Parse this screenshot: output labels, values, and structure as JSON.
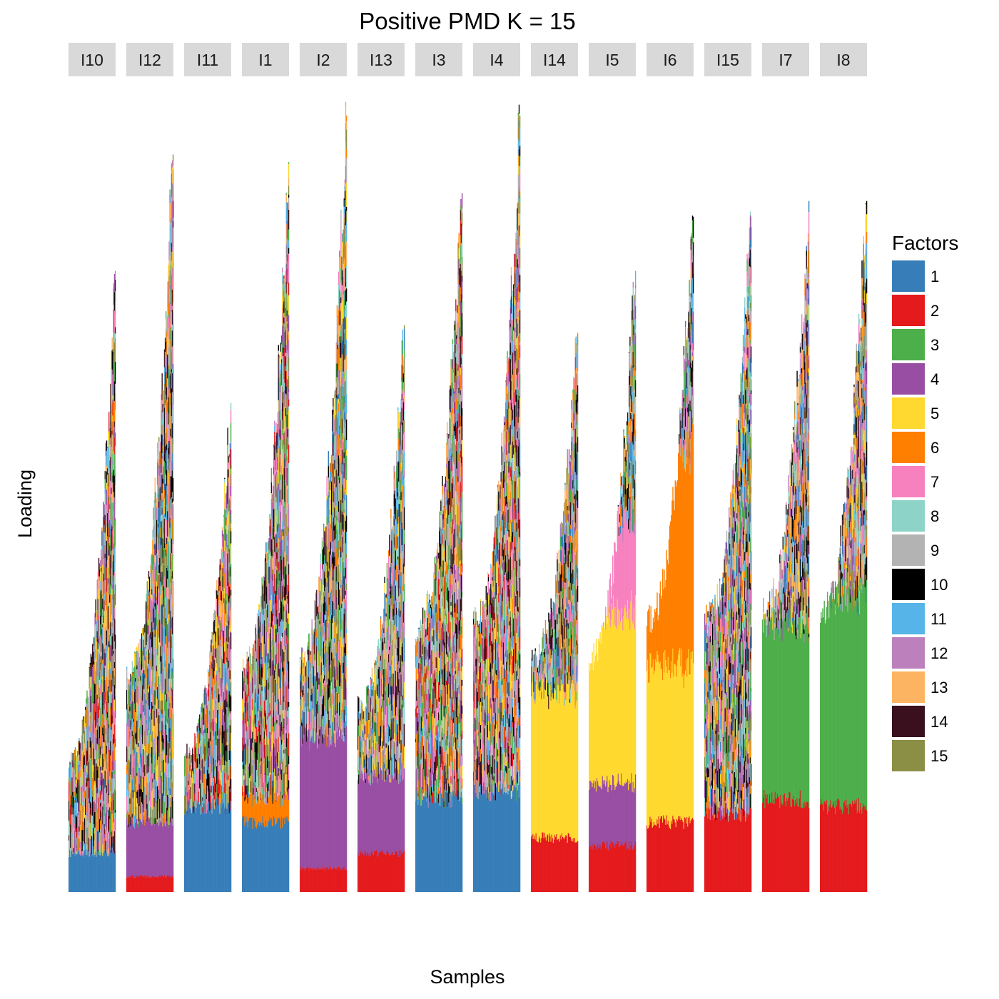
{
  "chart_data": {
    "type": "bar",
    "title": "Positive PMD K = 15",
    "xlabel": "Samples",
    "ylabel": "Loading",
    "legend": {
      "title": "Factors",
      "position": "right",
      "entries": [
        {
          "label": "1",
          "color": "#377EB8"
        },
        {
          "label": "2",
          "color": "#E41A1C"
        },
        {
          "label": "3",
          "color": "#4DAF4A"
        },
        {
          "label": "4",
          "color": "#984EA3"
        },
        {
          "label": "5",
          "color": "#FFD92F"
        },
        {
          "label": "6",
          "color": "#FF7F00"
        },
        {
          "label": "7",
          "color": "#F781BF"
        },
        {
          "label": "8",
          "color": "#8DD3C7"
        },
        {
          "label": "9",
          "color": "#B3B3B3"
        },
        {
          "label": "10",
          "color": "#000000"
        },
        {
          "label": "11",
          "color": "#56B4E9"
        },
        {
          "label": "12",
          "color": "#BC80BD"
        },
        {
          "label": "13",
          "color": "#FDB462"
        },
        {
          "label": "14",
          "color": "#3A0F1E"
        },
        {
          "label": "15",
          "color": "#8B8E45"
        }
      ]
    },
    "grid": false,
    "axis_ticks": false,
    "facets": [
      {
        "label": "I10",
        "max": 0.8,
        "min": 0.17,
        "dominant": [
          {
            "factor": "1",
            "share": 0.05
          }
        ]
      },
      {
        "label": "I12",
        "max": 0.95,
        "min": 0.28,
        "dominant": [
          {
            "factor": "2",
            "share": 0.02
          },
          {
            "factor": "4",
            "share": 0.07
          }
        ]
      },
      {
        "label": "I11",
        "max": 0.63,
        "min": 0.18,
        "dominant": [
          {
            "factor": "1",
            "share": 0.11
          }
        ]
      },
      {
        "label": "I1",
        "max": 0.94,
        "min": 0.29,
        "dominant": [
          {
            "factor": "1",
            "share": 0.09
          },
          {
            "factor": "6",
            "share": 0.03
          }
        ]
      },
      {
        "label": "I2",
        "max": 1.0,
        "min": 0.3,
        "dominant": [
          {
            "factor": "2",
            "share": 0.03
          },
          {
            "factor": "4",
            "share": 0.17
          }
        ]
      },
      {
        "label": "I13",
        "max": 0.73,
        "min": 0.24,
        "dominant": [
          {
            "factor": "2",
            "share": 0.05
          },
          {
            "factor": "4",
            "share": 0.1
          }
        ]
      },
      {
        "label": "I3",
        "max": 0.9,
        "min": 0.34,
        "dominant": [
          {
            "factor": "1",
            "share": 0.12
          }
        ]
      },
      {
        "label": "I4",
        "max": 1.0,
        "min": 0.35,
        "dominant": [
          {
            "factor": "1",
            "share": 0.13
          }
        ]
      },
      {
        "label": "I14",
        "max": 0.72,
        "min": 0.3,
        "dominant": [
          {
            "factor": "2",
            "share": 0.07
          },
          {
            "factor": "5",
            "share": 0.19
          }
        ]
      },
      {
        "label": "I5",
        "max": 0.8,
        "min": 0.3,
        "dominant": [
          {
            "factor": "2",
            "share": 0.06
          },
          {
            "factor": "4",
            "share": 0.08
          },
          {
            "factor": "5",
            "share": 0.22
          },
          {
            "factor": "7",
            "share": 0.12
          }
        ]
      },
      {
        "label": "I6",
        "max": 0.87,
        "min": 0.35,
        "dominant": [
          {
            "factor": "2",
            "share": 0.09
          },
          {
            "factor": "5",
            "share": 0.2
          },
          {
            "factor": "6",
            "share": 0.28
          }
        ]
      },
      {
        "label": "I15",
        "max": 0.87,
        "min": 0.35,
        "dominant": [
          {
            "factor": "2",
            "share": 0.1
          }
        ]
      },
      {
        "label": "I7",
        "max": 0.89,
        "min": 0.36,
        "dominant": [
          {
            "factor": "2",
            "share": 0.12
          },
          {
            "factor": "3",
            "share": 0.23
          }
        ]
      },
      {
        "label": "I8",
        "max": 0.89,
        "min": 0.36,
        "dominant": [
          {
            "factor": "2",
            "share": 0.11
          },
          {
            "factor": "3",
            "share": 0.27
          }
        ]
      }
    ]
  }
}
